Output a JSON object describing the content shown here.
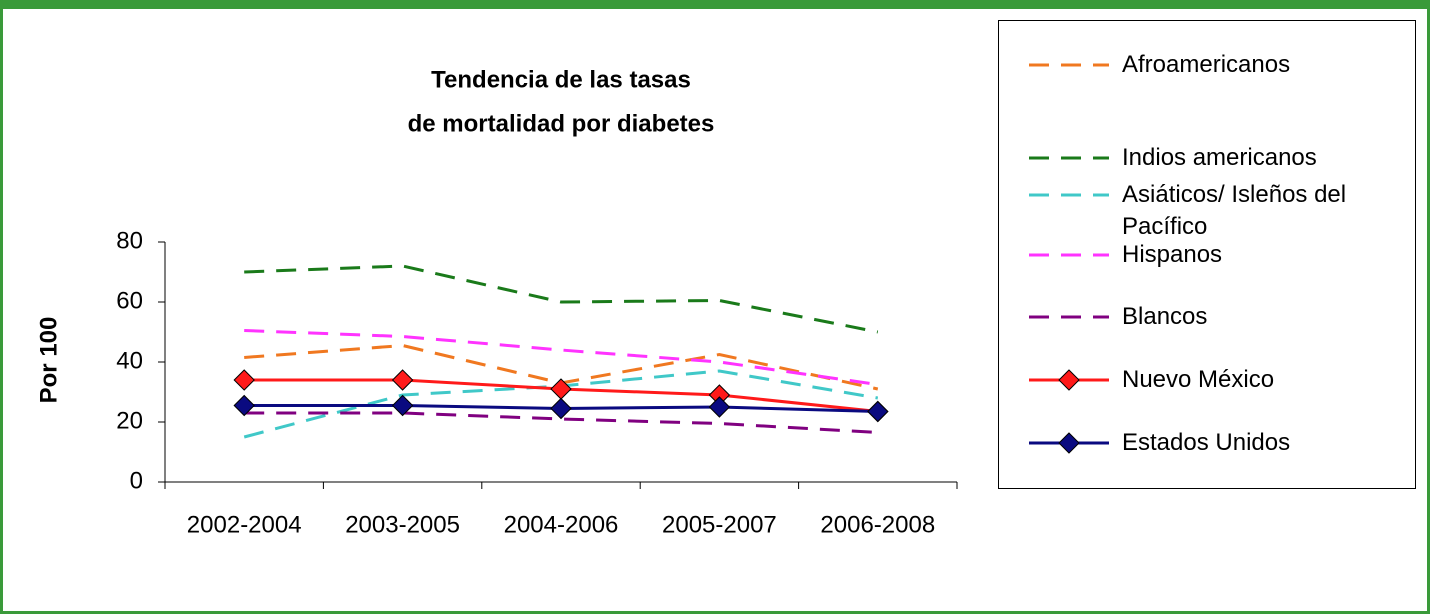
{
  "chart_data": {
    "type": "line",
    "title": [
      "Tendencia de las tasas",
      "de mortalidad por diabetes"
    ],
    "y_label": "Por 100",
    "categories": [
      "2002-2004",
      "2003-2005",
      "2004-2006",
      "2005-2007",
      "2006-2008"
    ],
    "ylim": [
      0,
      80
    ],
    "yticks": [
      0,
      20,
      40,
      60,
      80
    ],
    "legend": "right",
    "series": [
      {
        "name": "Afroamericanos",
        "color": "#f07820",
        "dashed": true,
        "values": [
          41.5,
          45.5,
          33,
          42.5,
          31
        ]
      },
      {
        "name": "Indios americanos",
        "color": "#1a7a1a",
        "dashed": true,
        "values": [
          70,
          72,
          60,
          60.5,
          50
        ]
      },
      {
        "name": "Asiáticos/ Isleños del Pacífico",
        "color": "#40c8c8",
        "dashed": true,
        "values": [
          15,
          29,
          32,
          37,
          28
        ]
      },
      {
        "name": "Hispanos",
        "color": "#ff33ff",
        "dashed": true,
        "values": [
          50.5,
          48.5,
          44,
          40,
          32.5
        ]
      },
      {
        "name": "Blancos",
        "color": "#800080",
        "dashed": true,
        "values": [
          23,
          23,
          21,
          19.5,
          16.5
        ]
      },
      {
        "name": "Nuevo México",
        "color": "#ff1a1a",
        "marker": "diamond",
        "values": [
          34,
          34,
          31,
          29,
          23.5
        ]
      },
      {
        "name": "Estados Unidos",
        "color": "#0a0a80",
        "marker": "diamond",
        "values": [
          25.5,
          25.5,
          24.5,
          25,
          23.5
        ]
      }
    ]
  }
}
